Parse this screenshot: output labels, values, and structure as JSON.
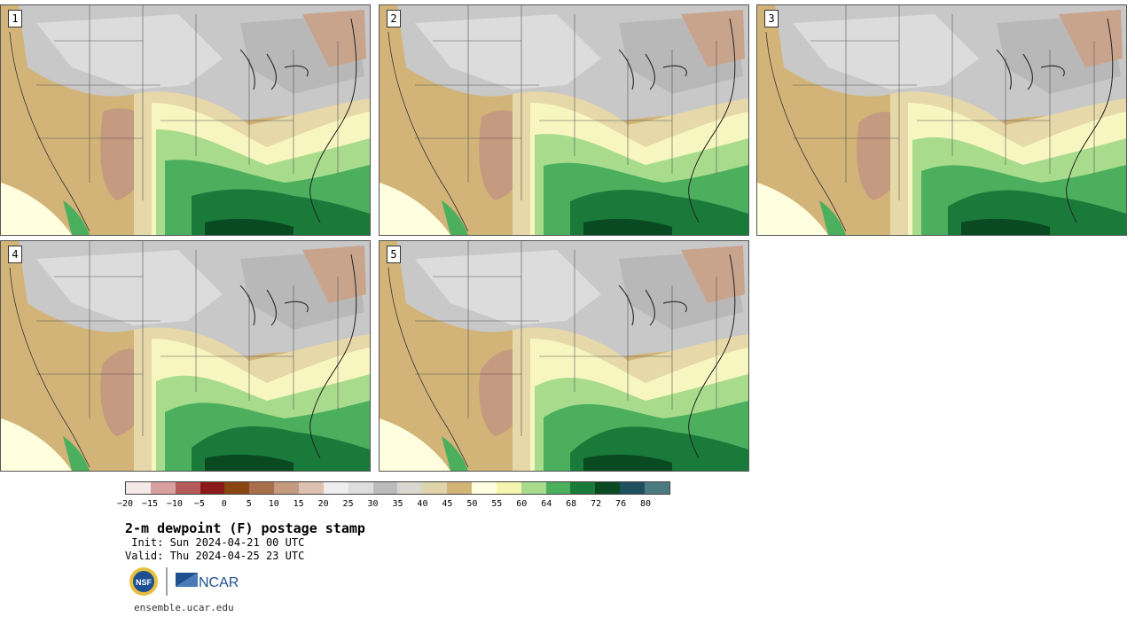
{
  "panels": [
    {
      "label": "1"
    },
    {
      "label": "2"
    },
    {
      "label": "3"
    },
    {
      "label": "4"
    },
    {
      "label": "5"
    }
  ],
  "colorbar": {
    "colors": [
      "#f5e8e8",
      "#d9a0a0",
      "#b55a5a",
      "#8c1a1a",
      "#8b4513",
      "#a8704a",
      "#c49a80",
      "#dcc0b0",
      "#eeeeee",
      "#dddddd",
      "#bbbbbb",
      "#d8d8d0",
      "#e0d4aa",
      "#d2b478",
      "#ffffe0",
      "#f5f5b0",
      "#a8dc8c",
      "#4caf5e",
      "#1a7a3a",
      "#0a4a22",
      "#1f5060",
      "#4a7a80"
    ],
    "ticks": [
      "−20",
      "−15",
      "−10",
      "−5",
      "0",
      "5",
      "10",
      "15",
      "20",
      "25",
      "30",
      "35",
      "40",
      "45",
      "50",
      "55",
      "60",
      "64",
      "68",
      "72",
      "76",
      "80"
    ]
  },
  "title": "2-m dewpoint (F) postage stamp",
  "init": " Init: Sun 2024-04-21 00 UTC",
  "valid": "Valid: Thu 2024-04-25 23 UTC",
  "logos": {
    "nsf": "NSF",
    "ncar": "NCAR"
  },
  "site": "ensemble.ucar.edu"
}
